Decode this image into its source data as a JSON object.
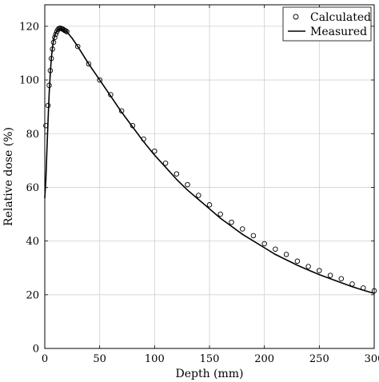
{
  "chart_data": {
    "type": "line",
    "xlabel": "Depth (mm)",
    "ylabel": "Relative dose (%)",
    "xlim": [
      0,
      300
    ],
    "ylim": [
      0,
      128
    ],
    "x_ticks": [
      0,
      50,
      100,
      150,
      200,
      250,
      300
    ],
    "y_ticks": [
      0,
      20,
      40,
      60,
      80,
      100,
      120
    ],
    "grid": true,
    "legend_position": "top-right",
    "series": [
      {
        "name": "Calculated",
        "style": "markers",
        "marker": "open-circle",
        "color": "#000000",
        "x": [
          1,
          3,
          4,
          5,
          6,
          7,
          8,
          9,
          10,
          11,
          12,
          13,
          14,
          15,
          16,
          17,
          18,
          19,
          20,
          30,
          40,
          50,
          60,
          70,
          80,
          90,
          100,
          110,
          120,
          130,
          140,
          150,
          160,
          170,
          180,
          190,
          200,
          210,
          220,
          230,
          240,
          250,
          260,
          270,
          280,
          290,
          300
        ],
        "y": [
          83,
          90.5,
          98,
          103.5,
          108,
          111.5,
          114,
          115.8,
          117,
          118,
          118.8,
          119.2,
          119.3,
          119.2,
          119,
          118.8,
          118.5,
          118.3,
          118,
          112.5,
          106,
          100,
          94.5,
          88.5,
          83,
          78,
          73.5,
          69,
          65,
          61,
          57,
          53.5,
          50,
          47,
          44.5,
          42,
          39,
          37,
          35,
          32.5,
          30.5,
          29,
          27.2,
          26,
          24,
          22.5,
          21.5
        ]
      },
      {
        "name": "Measured",
        "style": "line",
        "color": "#000000",
        "x": [
          0,
          1,
          2,
          3,
          4,
          5,
          6,
          7,
          8,
          9,
          10,
          11,
          12,
          13,
          14,
          15,
          16,
          17,
          18,
          19,
          20,
          25,
          30,
          40,
          50,
          60,
          70,
          80,
          90,
          100,
          110,
          120,
          130,
          140,
          150,
          160,
          170,
          180,
          190,
          200,
          210,
          220,
          230,
          240,
          250,
          260,
          270,
          280,
          290,
          300
        ],
        "y": [
          56,
          63,
          74,
          85,
          95,
          102.5,
          108,
          112,
          114.8,
          116.5,
          117.5,
          118.2,
          118.7,
          119,
          119.1,
          119,
          118.9,
          118.7,
          118.5,
          118.2,
          118,
          115.5,
          112.5,
          106,
          100,
          94,
          88,
          82.5,
          77,
          72,
          67.5,
          63,
          59,
          55.5,
          52,
          48.5,
          45.5,
          42.5,
          40,
          37.5,
          35,
          33,
          31,
          29.2,
          27.5,
          26,
          24.5,
          23,
          21.7,
          20.5
        ]
      }
    ]
  }
}
